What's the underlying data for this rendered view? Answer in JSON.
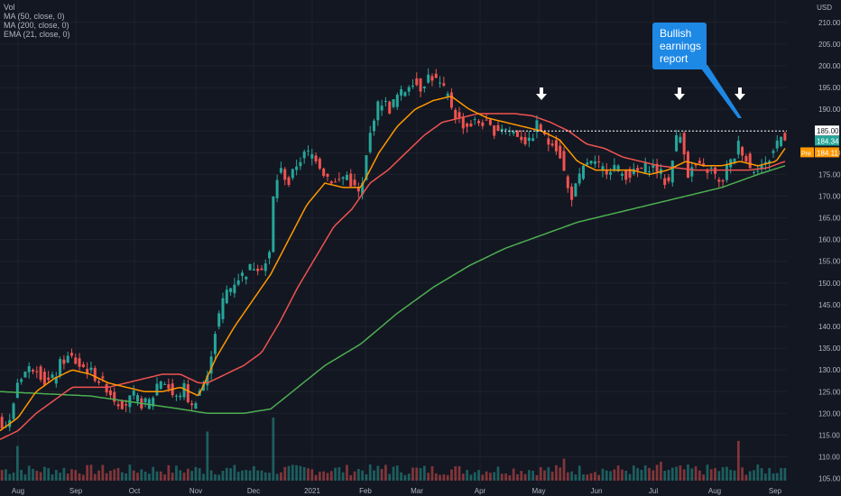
{
  "legend": {
    "vol": "Vol",
    "ma50": "MA (50, close, 0)",
    "ma200": "MA (200, close, 0)",
    "ema21": "EMA (21, close, 0)"
  },
  "currency": "USD",
  "annotation": {
    "line1": "Bullish",
    "line2": "earnings",
    "line3": "report"
  },
  "price_labels": {
    "level": "185.00",
    "last": "184.34",
    "ema_tag": "Pre",
    "ema_value": "184.11"
  },
  "colors": {
    "bg": "#131722",
    "grid": "#1e222d",
    "up": "#26a69a",
    "down": "#ef5350",
    "ma50": "#ef5350",
    "ma200": "#4caf50",
    "ema21": "#ff9800",
    "arrow": "#ffffff",
    "callout": "#1e88e5"
  },
  "chart_data": {
    "type": "candlestick",
    "x_ticks": [
      "Aug",
      "Sep",
      "Oct",
      "Nov",
      "Dec",
      "2021",
      "Feb",
      "Mar",
      "Apr",
      "May",
      "Jun",
      "Jul",
      "Aug",
      "Sep"
    ],
    "y_ticks": [
      105,
      110,
      115,
      120,
      125,
      130,
      135,
      140,
      145,
      150,
      155,
      160,
      165,
      170,
      175,
      180,
      185,
      190,
      195,
      200,
      205,
      210
    ],
    "ylim": [
      104.5,
      211
    ],
    "series": [
      {
        "name": "MA (50, close, 0)",
        "key": "ma50"
      },
      {
        "name": "MA (200, close, 0)",
        "key": "ma200"
      },
      {
        "name": "EMA (21, close, 0)",
        "key": "ema21"
      }
    ],
    "close_anchors": [
      [
        0,
        118
      ],
      [
        10,
        117
      ],
      [
        20,
        128
      ],
      [
        30,
        130
      ],
      [
        40,
        131
      ],
      [
        50,
        127
      ],
      [
        60,
        128
      ],
      [
        68,
        132
      ],
      [
        78,
        133
      ],
      [
        88,
        131
      ],
      [
        98,
        130
      ],
      [
        108,
        128
      ],
      [
        118,
        126
      ],
      [
        128,
        123
      ],
      [
        138,
        122
      ],
      [
        148,
        124
      ],
      [
        158,
        122
      ],
      [
        168,
        123
      ],
      [
        176,
        128
      ],
      [
        184,
        127
      ],
      [
        194,
        123
      ],
      [
        204,
        126
      ],
      [
        212,
        121
      ],
      [
        220,
        125
      ],
      [
        230,
        128
      ],
      [
        236,
        137
      ],
      [
        242,
        142
      ],
      [
        250,
        148
      ],
      [
        256,
        149
      ],
      [
        262,
        151
      ],
      [
        270,
        152
      ],
      [
        280,
        154
      ],
      [
        290,
        154
      ],
      [
        298,
        155
      ],
      [
        304,
        173
      ],
      [
        312,
        176
      ],
      [
        320,
        173
      ],
      [
        330,
        178
      ],
      [
        340,
        180
      ],
      [
        350,
        179
      ],
      [
        360,
        175
      ],
      [
        372,
        173
      ],
      [
        384,
        175
      ],
      [
        392,
        172
      ],
      [
        400,
        170
      ],
      [
        408,
        182
      ],
      [
        416,
        190
      ],
      [
        424,
        192
      ],
      [
        432,
        190
      ],
      [
        440,
        193
      ],
      [
        448,
        194
      ],
      [
        456,
        197
      ],
      [
        466,
        195
      ],
      [
        476,
        198
      ],
      [
        486,
        196
      ],
      [
        496,
        193
      ],
      [
        506,
        188
      ],
      [
        516,
        186
      ],
      [
        526,
        187
      ],
      [
        536,
        187
      ],
      [
        546,
        185
      ],
      [
        556,
        186
      ],
      [
        566,
        185
      ],
      [
        576,
        184
      ],
      [
        586,
        182
      ],
      [
        596,
        187
      ],
      [
        606,
        182
      ],
      [
        612,
        183
      ],
      [
        622,
        179
      ],
      [
        628,
        172
      ],
      [
        634,
        170
      ],
      [
        642,
        174
      ],
      [
        650,
        178
      ],
      [
        660,
        177
      ],
      [
        670,
        176
      ],
      [
        680,
        177
      ],
      [
        690,
        175
      ],
      [
        700,
        175
      ],
      [
        710,
        176
      ],
      [
        720,
        177
      ],
      [
        730,
        176
      ],
      [
        740,
        172
      ],
      [
        748,
        183
      ],
      [
        756,
        184
      ],
      [
        762,
        175
      ],
      [
        770,
        177
      ],
      [
        780,
        176
      ],
      [
        790,
        176
      ],
      [
        798,
        172
      ],
      [
        806,
        177
      ],
      [
        812,
        178
      ],
      [
        818,
        182
      ],
      [
        824,
        180
      ],
      [
        832,
        176
      ],
      [
        840,
        177
      ],
      [
        848,
        177
      ],
      [
        856,
        180
      ],
      [
        862,
        183
      ],
      [
        868,
        184
      ]
    ],
    "ma50_anchors": [
      [
        0,
        114
      ],
      [
        20,
        116
      ],
      [
        40,
        120
      ],
      [
        60,
        123
      ],
      [
        80,
        126
      ],
      [
        100,
        126
      ],
      [
        120,
        126
      ],
      [
        140,
        127
      ],
      [
        160,
        128
      ],
      [
        180,
        129
      ],
      [
        200,
        129
      ],
      [
        220,
        127
      ],
      [
        230,
        127
      ],
      [
        250,
        129
      ],
      [
        270,
        131
      ],
      [
        290,
        134
      ],
      [
        310,
        141
      ],
      [
        330,
        149
      ],
      [
        350,
        156
      ],
      [
        370,
        163
      ],
      [
        390,
        167
      ],
      [
        410,
        173
      ],
      [
        430,
        176
      ],
      [
        450,
        180
      ],
      [
        470,
        184
      ],
      [
        490,
        187
      ],
      [
        510,
        188
      ],
      [
        530,
        189
      ],
      [
        550,
        189
      ],
      [
        570,
        189
      ],
      [
        590,
        188.5
      ],
      [
        610,
        187
      ],
      [
        630,
        185
      ],
      [
        650,
        182
      ],
      [
        670,
        181
      ],
      [
        690,
        179
      ],
      [
        710,
        178
      ],
      [
        730,
        177
      ],
      [
        750,
        176.5
      ],
      [
        770,
        176
      ],
      [
        790,
        176
      ],
      [
        810,
        176
      ],
      [
        830,
        176
      ],
      [
        850,
        176.5
      ],
      [
        870,
        178
      ]
    ],
    "ma200_anchors": [
      [
        0,
        125
      ],
      [
        50,
        124.5
      ],
      [
        100,
        124
      ],
      [
        150,
        122.5
      ],
      [
        200,
        121
      ],
      [
        230,
        120
      ],
      [
        270,
        120
      ],
      [
        300,
        121
      ],
      [
        330,
        126
      ],
      [
        360,
        131
      ],
      [
        400,
        136
      ],
      [
        440,
        143
      ],
      [
        480,
        149
      ],
      [
        520,
        154
      ],
      [
        560,
        158
      ],
      [
        600,
        161
      ],
      [
        640,
        164
      ],
      [
        680,
        166
      ],
      [
        720,
        168
      ],
      [
        760,
        170
      ],
      [
        800,
        172
      ],
      [
        840,
        175
      ],
      [
        870,
        177
      ]
    ],
    "ema21_anchors": [
      [
        0,
        116
      ],
      [
        20,
        119
      ],
      [
        40,
        125
      ],
      [
        60,
        128
      ],
      [
        80,
        130
      ],
      [
        100,
        129
      ],
      [
        120,
        127
      ],
      [
        140,
        126
      ],
      [
        160,
        125
      ],
      [
        180,
        125
      ],
      [
        200,
        126
      ],
      [
        220,
        124
      ],
      [
        240,
        133
      ],
      [
        260,
        140
      ],
      [
        280,
        146
      ],
      [
        300,
        152
      ],
      [
        320,
        160
      ],
      [
        340,
        168
      ],
      [
        360,
        173
      ],
      [
        380,
        172
      ],
      [
        400,
        172
      ],
      [
        420,
        180
      ],
      [
        440,
        186
      ],
      [
        460,
        190
      ],
      [
        480,
        192
      ],
      [
        500,
        193
      ],
      [
        520,
        190
      ],
      [
        540,
        188
      ],
      [
        560,
        187
      ],
      [
        580,
        186
      ],
      [
        600,
        185
      ],
      [
        620,
        183
      ],
      [
        640,
        178
      ],
      [
        660,
        176
      ],
      [
        680,
        176
      ],
      [
        700,
        176
      ],
      [
        720,
        175
      ],
      [
        740,
        176
      ],
      [
        760,
        178
      ],
      [
        780,
        177
      ],
      [
        800,
        177
      ],
      [
        820,
        178
      ],
      [
        840,
        177
      ],
      [
        860,
        178
      ],
      [
        870,
        181
      ]
    ],
    "volume_spikes": [
      [
        20,
        0.55
      ],
      [
        231,
        0.78
      ],
      [
        303,
        1.0
      ],
      [
        426,
        0.25
      ],
      [
        626,
        0.35
      ],
      [
        734,
        0.3
      ],
      [
        820,
        0.63
      ],
      [
        868,
        0.2
      ]
    ],
    "price_line": 185.0,
    "signal_arrows_x": [
      600,
      753,
      820
    ],
    "callout_x": 820
  }
}
